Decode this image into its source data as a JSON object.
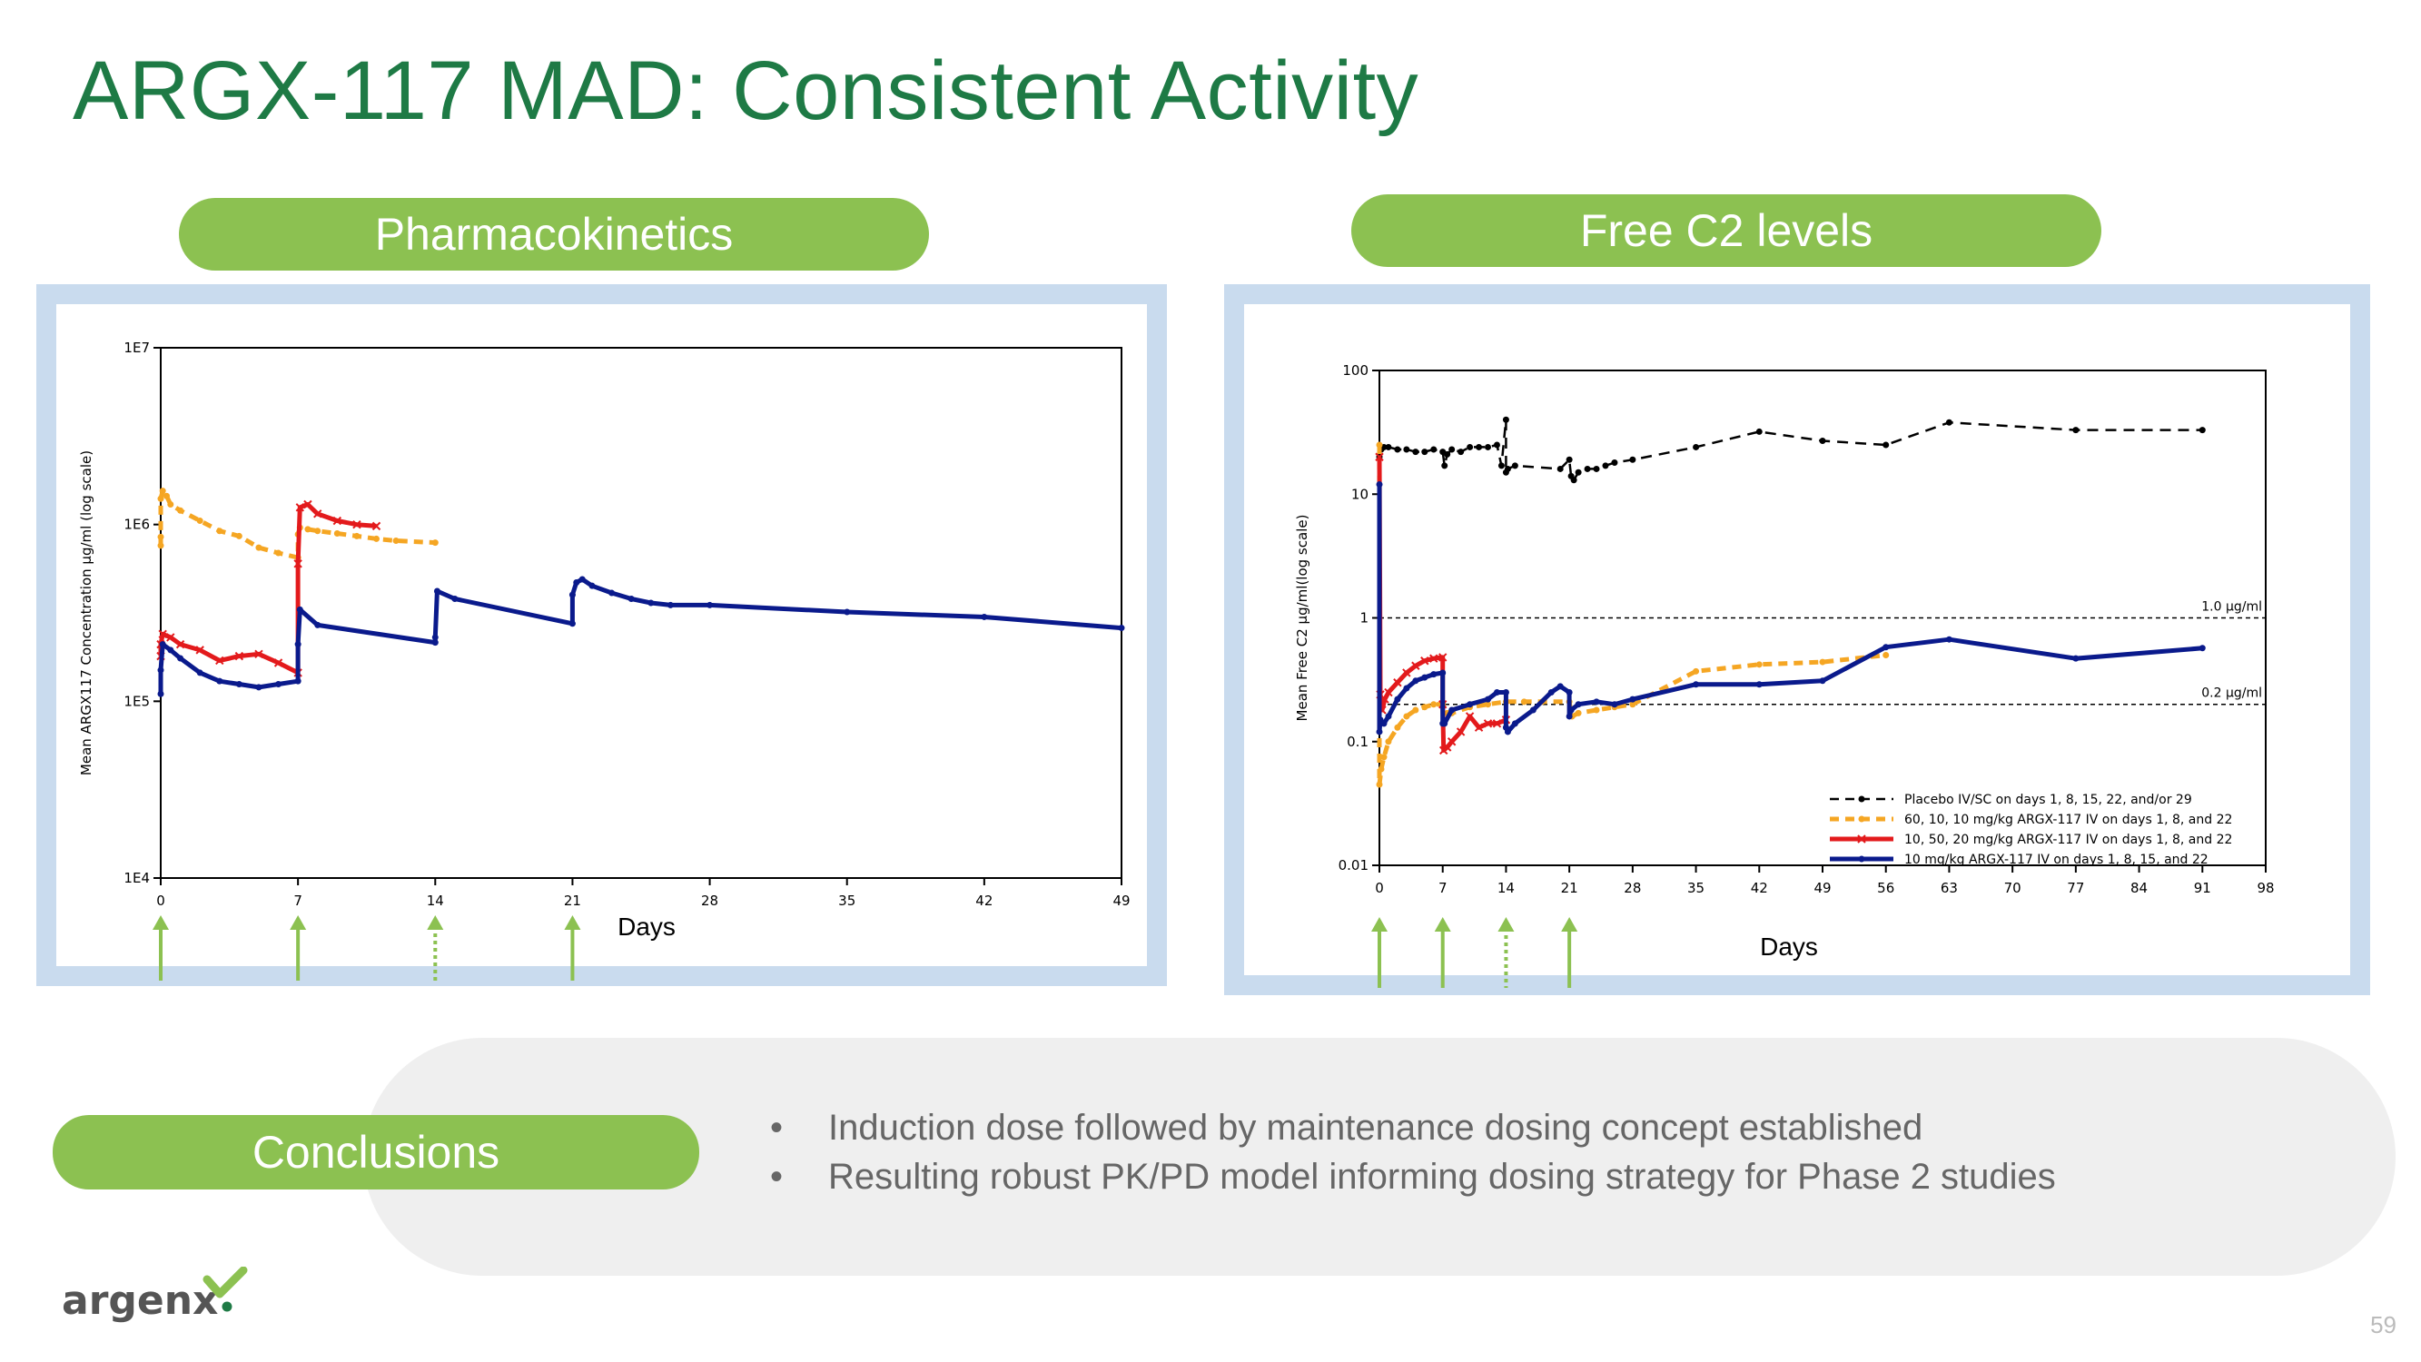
{
  "slide": {
    "title": "ARGX-117 MAD: Consistent Activity",
    "page_number": "59",
    "colors": {
      "title": "#1e7a45",
      "pill": "#8cc151",
      "panel_border": "#c9dbee",
      "arrow": "#8cc151"
    }
  },
  "pills": {
    "pk": "Pharmacokinetics",
    "c2": "Free C2 levels",
    "conclusions": "Conclusions"
  },
  "conclusions": {
    "bullets": [
      "Induction dose followed by maintenance dosing concept established",
      "Resulting robust PK/PD model informing dosing strategy for Phase 2 studies"
    ]
  },
  "logo": {
    "text": "argenx",
    "icon": "argenx-chevron-logo-icon"
  },
  "chart_data": [
    {
      "type": "line",
      "title": "",
      "xlabel": "Days",
      "ylabel": "Mean ARGX117 Concentration µg/ml (log scale)",
      "yscale": "log",
      "xlim": [
        0,
        49
      ],
      "ylim": [
        10000,
        10000000
      ],
      "xticks": [
        0,
        7,
        14,
        21,
        28,
        35,
        42,
        49
      ],
      "yticks": [
        {
          "value": 10000,
          "label": "1E4"
        },
        {
          "value": 100000,
          "label": "1E5"
        },
        {
          "value": 1000000,
          "label": "1E6"
        },
        {
          "value": 10000000,
          "label": "1E7"
        }
      ],
      "dose_arrows": [
        {
          "day": 0,
          "style": "solid"
        },
        {
          "day": 7,
          "style": "solid"
        },
        {
          "day": 14,
          "style": "dotted"
        },
        {
          "day": 21,
          "style": "solid"
        }
      ],
      "series": [
        {
          "color": "#f5a623",
          "dash": "dash",
          "marker": "dot",
          "x": [
            0,
            0,
            0,
            0.1,
            0.3,
            0.5,
            1,
            2,
            3,
            4,
            5,
            6,
            7,
            7,
            7.1,
            7.5,
            8,
            9,
            10,
            11,
            12,
            14
          ],
          "y": [
            760000,
            850000,
            1400000,
            1550000,
            1450000,
            1300000,
            1200000,
            1050000,
            920000,
            860000,
            740000,
            690000,
            650000,
            880000,
            960000,
            940000,
            920000,
            890000,
            860000,
            830000,
            810000,
            790000
          ]
        },
        {
          "color": "#e31a1c",
          "dash": "solid",
          "marker": "x",
          "x": [
            0,
            0,
            0.1,
            0.5,
            1,
            2,
            3,
            4,
            5,
            6,
            7,
            7,
            7.1,
            7.5,
            8,
            9,
            10,
            11
          ],
          "y": [
            180000,
            210000,
            240000,
            230000,
            210000,
            195000,
            170000,
            180000,
            185000,
            165000,
            145000,
            600000,
            1250000,
            1300000,
            1150000,
            1050000,
            1000000,
            980000
          ]
        },
        {
          "color": "#0a1a8c",
          "dash": "solid",
          "marker": "dot",
          "x": [
            0,
            0,
            0.1,
            0.5,
            1,
            2,
            3,
            4,
            5,
            6,
            7,
            7,
            7.1,
            8,
            14,
            14,
            14.1,
            15,
            21,
            21,
            21.2,
            21.5,
            22,
            23,
            24,
            25,
            26,
            28,
            35,
            42,
            49
          ],
          "y": [
            110000,
            150000,
            210000,
            195000,
            175000,
            145000,
            130000,
            125000,
            120000,
            125000,
            130000,
            210000,
            330000,
            270000,
            215000,
            230000,
            420000,
            380000,
            275000,
            400000,
            470000,
            490000,
            450000,
            410000,
            380000,
            360000,
            350000,
            350000,
            320000,
            300000,
            260000
          ]
        }
      ]
    },
    {
      "type": "line",
      "title": "",
      "xlabel": "Days",
      "ylabel": "Mean Free C2 µg/ml(log scale)",
      "yscale": "log",
      "xlim": [
        0,
        98
      ],
      "ylim": [
        0.01,
        100
      ],
      "xticks": [
        0,
        7,
        14,
        21,
        28,
        35,
        42,
        49,
        56,
        63,
        70,
        77,
        84,
        91,
        98
      ],
      "yticks": [
        {
          "value": 0.01,
          "label": "0.01"
        },
        {
          "value": 0.1,
          "label": "0.1"
        },
        {
          "value": 1,
          "label": "1"
        },
        {
          "value": 10,
          "label": "10"
        },
        {
          "value": 100,
          "label": "100"
        }
      ],
      "reference_lines": [
        {
          "value": 1.0,
          "label": "1.0 µg/ml"
        },
        {
          "value": 0.2,
          "label": "0.2 µg/ml"
        }
      ],
      "legend_position": "bottom-right",
      "dose_arrows": [
        {
          "day": 0,
          "style": "solid"
        },
        {
          "day": 7,
          "style": "solid"
        },
        {
          "day": 14,
          "style": "dotted"
        },
        {
          "day": 21,
          "style": "solid"
        }
      ],
      "series": [
        {
          "name": "Placebo IV/SC on days 1, 8, 15, 22, and/or 29",
          "color": "#000000",
          "dash": "dash",
          "marker": "dot",
          "x": [
            0,
            0.2,
            0.5,
            1,
            2,
            3,
            4,
            5,
            6,
            7,
            7.2,
            7.5,
            8,
            9,
            10,
            11,
            12,
            13,
            13.5,
            14,
            14,
            14.2,
            15,
            20,
            21,
            21.2,
            21.5,
            22,
            23,
            24,
            25,
            26,
            28,
            35,
            42,
            49,
            56,
            63,
            77,
            91
          ],
          "y": [
            20,
            23,
            24,
            24,
            23,
            23,
            22,
            22,
            23,
            22,
            17,
            21,
            23,
            22,
            24,
            24,
            24,
            25,
            17,
            40,
            15,
            16,
            17,
            16,
            19,
            14,
            13,
            15,
            16,
            16,
            17,
            18,
            19,
            24,
            32,
            27,
            25,
            38,
            33,
            33
          ]
        },
        {
          "name": "60, 10, 10 mg/kg ARGX-117 IV on days 1, 8, and 22",
          "color": "#f5a623",
          "dash": "dash",
          "marker": "dot",
          "x": [
            0,
            0,
            0.2,
            0.5,
            1,
            2,
            3,
            4,
            5,
            6,
            7,
            7.5,
            8,
            10,
            12,
            14,
            16,
            18,
            21,
            21.3,
            22,
            24,
            26,
            28,
            35,
            42,
            49,
            56
          ],
          "y": [
            25,
            0.045,
            0.06,
            0.075,
            0.1,
            0.13,
            0.16,
            0.18,
            0.19,
            0.2,
            0.2,
            0.17,
            0.17,
            0.19,
            0.2,
            0.21,
            0.21,
            0.21,
            0.21,
            0.16,
            0.17,
            0.18,
            0.19,
            0.2,
            0.37,
            0.42,
            0.44,
            0.5
          ]
        },
        {
          "name": "10, 50, 20 mg/kg ARGX-117 IV on days 1, 8, and 22",
          "color": "#e31a1c",
          "dash": "solid",
          "marker": "x",
          "x": [
            0,
            0.1,
            0.3,
            0.6,
            1,
            2,
            3,
            4,
            5,
            6,
            7,
            7,
            7.1,
            7.5,
            8,
            9,
            10,
            11,
            12,
            13,
            14
          ],
          "y": [
            20,
            0.24,
            0.18,
            0.22,
            0.25,
            0.3,
            0.36,
            0.41,
            0.45,
            0.47,
            0.48,
            0.2,
            0.085,
            0.09,
            0.1,
            0.12,
            0.16,
            0.13,
            0.14,
            0.14,
            0.15
          ]
        },
        {
          "name": "10 mg/kg ARGX-117 IV on days 1, 8, 15, and 22",
          "color": "#0a1a8c",
          "dash": "solid",
          "marker": "dot",
          "x": [
            0,
            0,
            0.1,
            0.5,
            1,
            2,
            3,
            4,
            5,
            6,
            7,
            7,
            7.2,
            8,
            10,
            12,
            13,
            14,
            14,
            14.2,
            15,
            17,
            19,
            20,
            21,
            21,
            21.2,
            22,
            24,
            26,
            28,
            35,
            42,
            49,
            56,
            63,
            77,
            91
          ],
          "y": [
            12,
            0.12,
            0.15,
            0.14,
            0.16,
            0.22,
            0.27,
            0.31,
            0.33,
            0.35,
            0.36,
            0.14,
            0.14,
            0.18,
            0.2,
            0.22,
            0.25,
            0.25,
            0.13,
            0.12,
            0.14,
            0.18,
            0.25,
            0.28,
            0.25,
            0.16,
            0.18,
            0.2,
            0.21,
            0.2,
            0.22,
            0.29,
            0.29,
            0.31,
            0.58,
            0.67,
            0.47,
            0.57
          ]
        }
      ]
    }
  ]
}
